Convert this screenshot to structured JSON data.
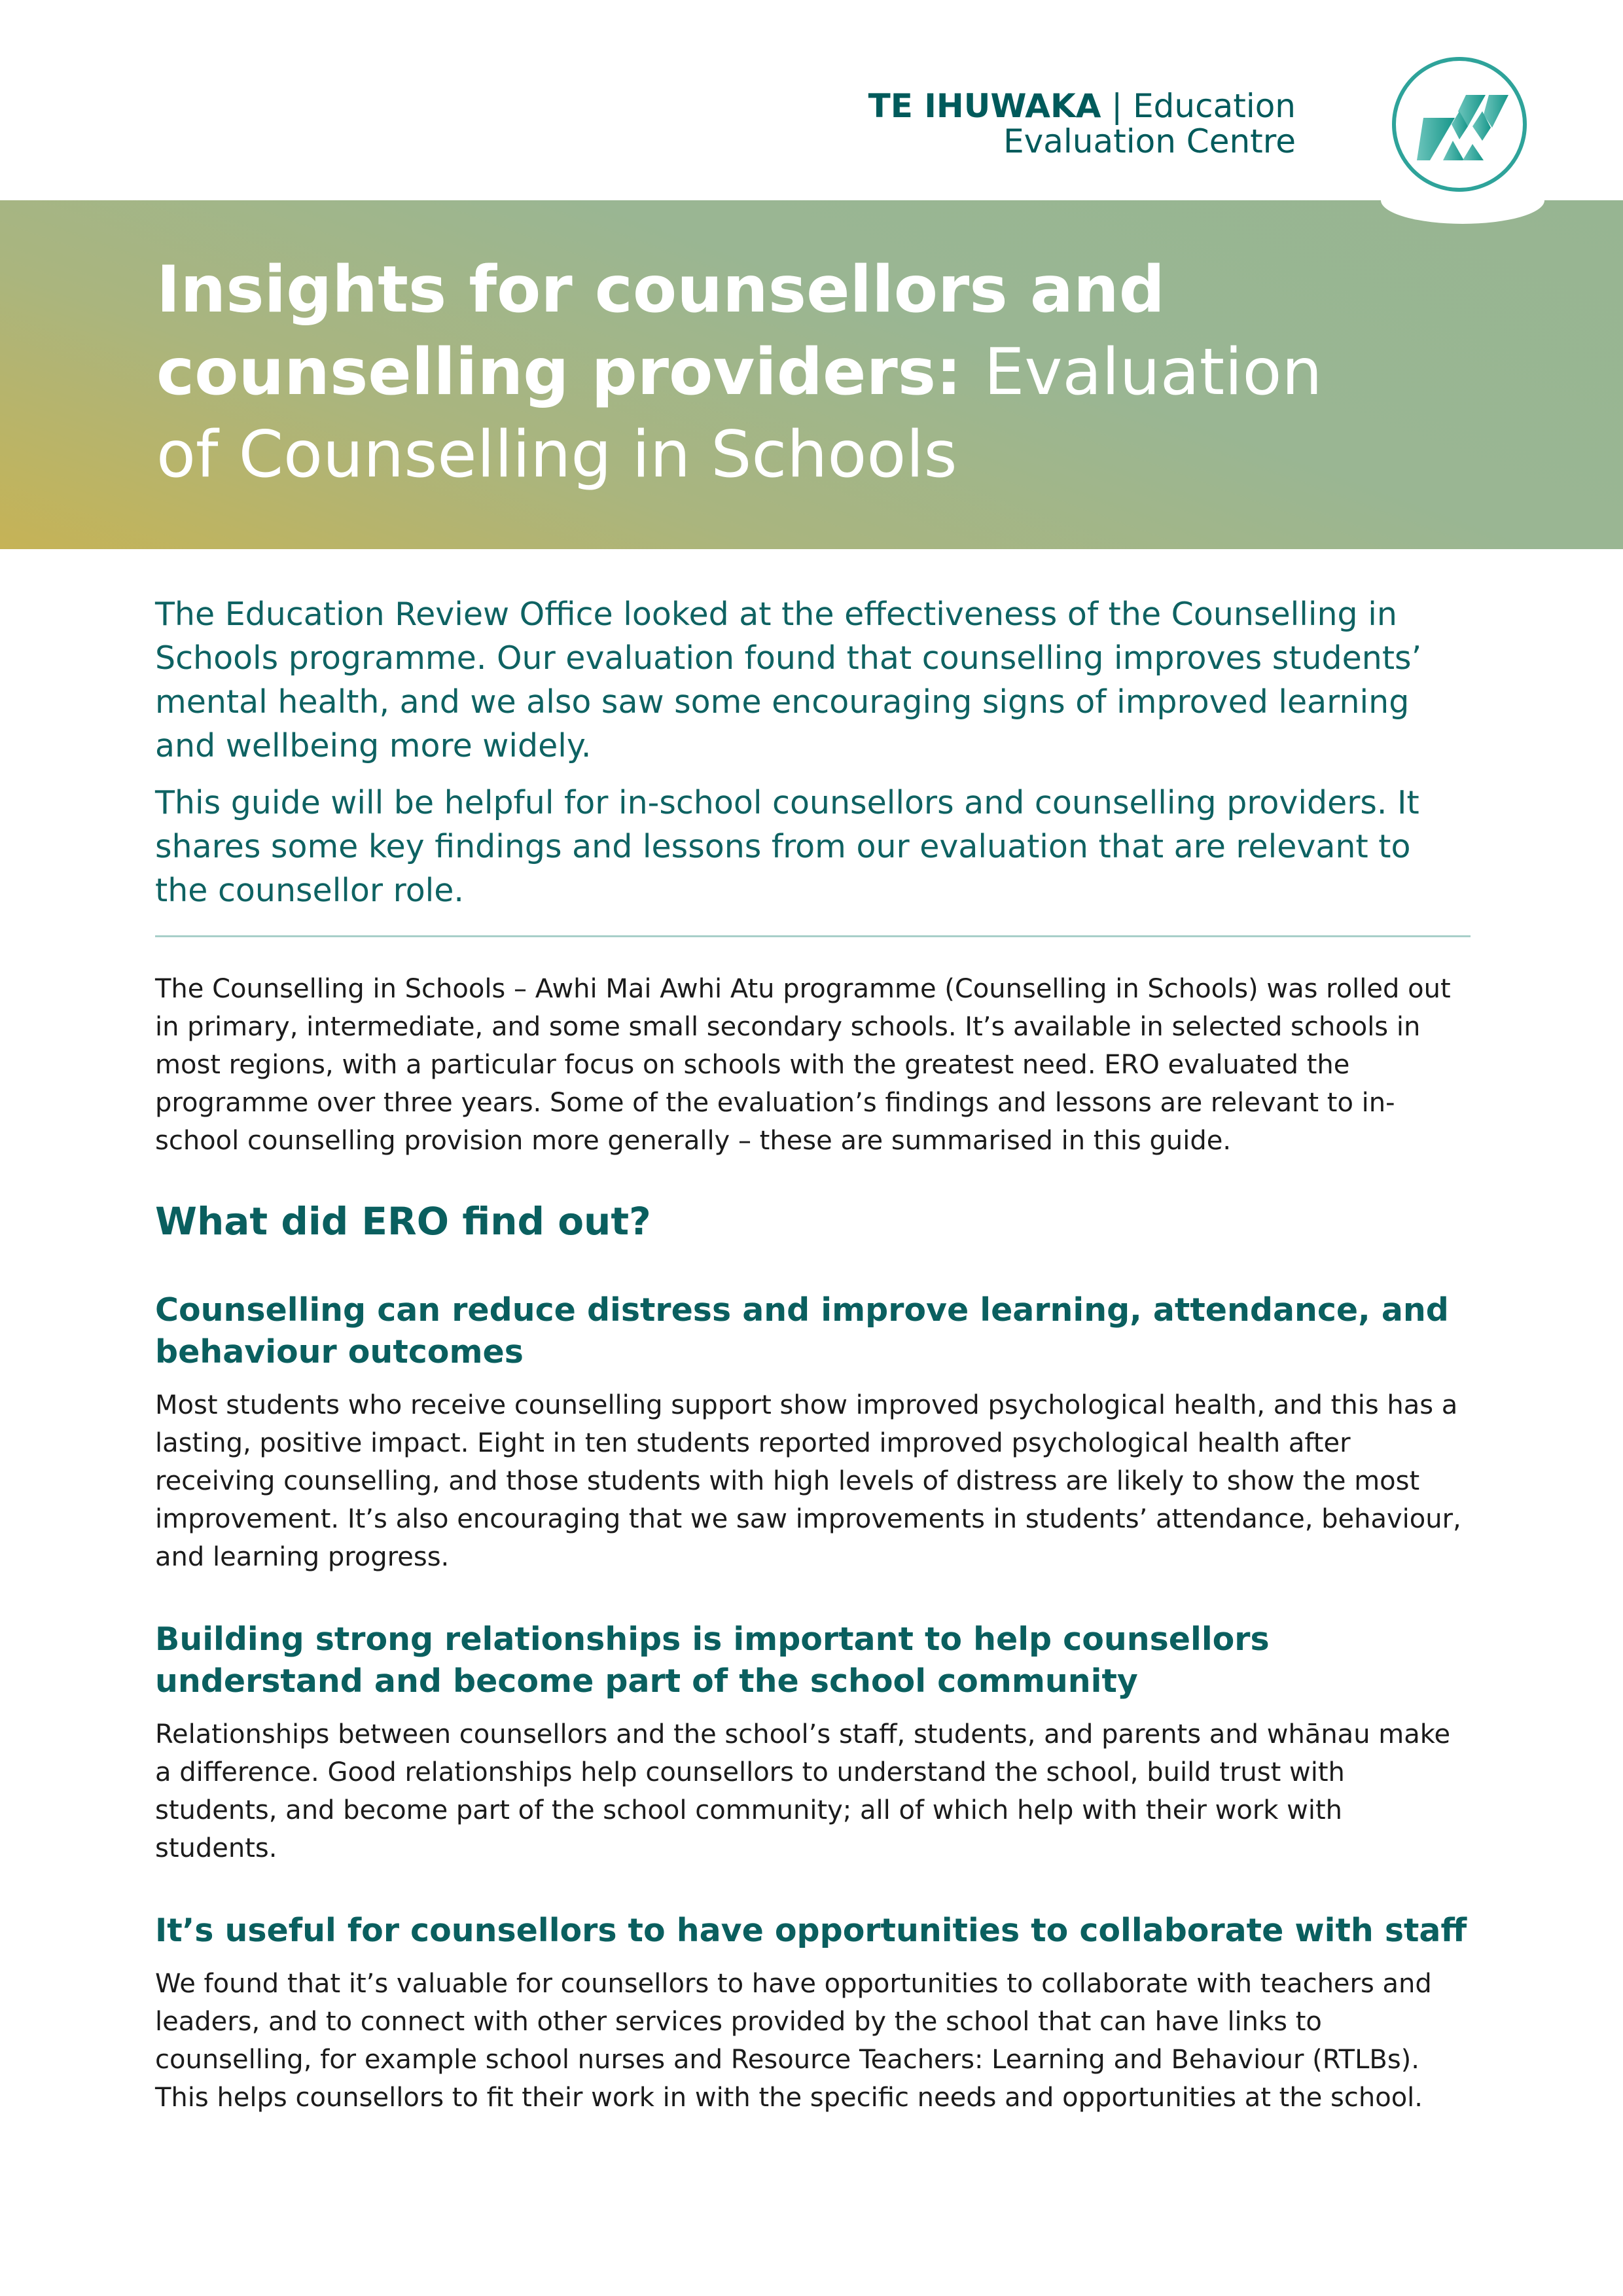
{
  "logo": {
    "bold": "TE IHUWAKA",
    "line1": "Education",
    "line2": "Evaluation Centre",
    "color": "#005a5b"
  },
  "title": {
    "bold": "Insights for counsellors and counselling providers:",
    "light": "Evaluation of Counselling in Schools"
  },
  "intro": [
    "The Education Review Office looked at the effectiveness of the Counselling in Schools programme. Our evaluation found that counselling improves students’ mental health, and we also saw some encouraging signs of improved learning and wellbeing more widely.",
    "This guide will be helpful for in-school counsellors and counselling providers. It shares some key findings and lessons from our evaluation that are relevant to the counsellor role."
  ],
  "overview": "The Counselling in Schools – Awhi Mai Awhi Atu programme (Counselling in Schools) was rolled out in primary, intermediate, and some small secondary schools. It’s available in selected schools in most regions, with a particular focus on schools with the greatest need. ERO evaluated the programme over three years. Some of the evaluation’s findings and lessons are relevant to in-school counselling provision more generally – these are summarised in this guide.",
  "section_heading": "What did ERO find out?",
  "findings": [
    {
      "heading": "Counselling can reduce distress and improve learning, attendance, and behaviour outcomes",
      "text": "Most students who receive counselling support show improved psychological health, and this has a lasting, positive impact. Eight in ten students reported improved psychological health after receiving counselling, and those students with high levels of distress are likely to show the most improvement. It’s also encouraging that we saw improvements in students’ attendance, behaviour, and learning progress."
    },
    {
      "heading": "Building strong relationships is important to help counsellors understand and become part of the school community",
      "text": "Relationships between counsellors and the school’s staff, students, and parents and whānau make a difference. Good relationships help counsellors to understand the school, build trust with students, and become part of the school community; all of which help with their work with students."
    },
    {
      "heading": "It’s useful for counsellors to have opportunities to collaborate with staff",
      "text": "We found that it’s valuable for counsellors to have opportunities to collaborate with teachers and leaders, and to connect with other services provided by the school that can have links to counselling, for example school nurses and Resource Teachers: Learning and Behaviour (RTLBs). This helps counsellors to fit their work in with the specific needs and opportunities at the school."
    }
  ]
}
